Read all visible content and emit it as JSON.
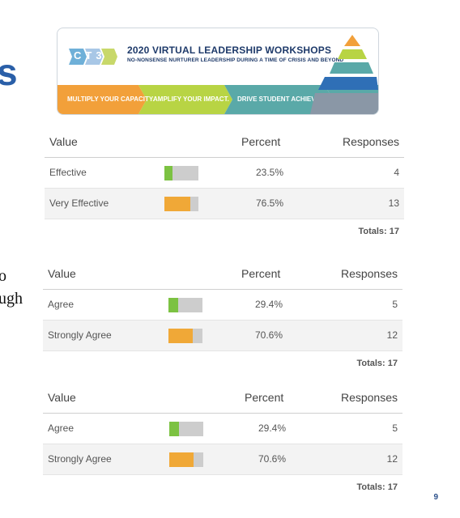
{
  "colors": {
    "agree_fill": "#7cc242",
    "strong_fill": "#f0a837",
    "bar_track": "#cdcdcd",
    "banner_orange": "#f2a03a",
    "banner_green": "#b8d444",
    "banner_teal": "#5aa9a8",
    "banner_navy": "#1e3a6a"
  },
  "page_edge": {
    "fragment_top": "s",
    "fragment_mid1": "o",
    "fragment_mid2": "ugh"
  },
  "banner": {
    "logo_text": "CT3",
    "title": "2020 VIRTUAL LEADERSHIP WORKSHOPS",
    "subtitle": "NO-NONSENSE NURTURER LEADERSHIP DURING A TIME OF CRISIS AND BEYOND",
    "strip": [
      "MULTIPLY YOUR CAPACITY.",
      "AMPLIFY YOUR IMPACT.",
      "DRIVE STUDENT ACHIEVEMENT."
    ]
  },
  "tables": [
    {
      "headers": {
        "value": "Value",
        "percent": "Percent",
        "responses": "Responses"
      },
      "rows": [
        {
          "label": "Effective",
          "percent": "23.5%",
          "fraction": 0.235,
          "responses": "4",
          "color": "#7cc242"
        },
        {
          "label": "Very Effective",
          "percent": "76.5%",
          "fraction": 0.765,
          "responses": "13",
          "color": "#f0a837"
        }
      ],
      "totals": "Totals: 17"
    },
    {
      "headers": {
        "value": "Value",
        "percent": "Percent",
        "responses": "Responses"
      },
      "rows": [
        {
          "label": "Agree",
          "percent": "29.4%",
          "fraction": 0.294,
          "responses": "5",
          "color": "#7cc242"
        },
        {
          "label": "Strongly Agree",
          "percent": "70.6%",
          "fraction": 0.706,
          "responses": "12",
          "color": "#f0a837"
        }
      ],
      "totals": "Totals: 17"
    },
    {
      "headers": {
        "value": "Value",
        "percent": "Percent",
        "responses": "Responses"
      },
      "rows": [
        {
          "label": "Agree",
          "percent": "29.4%",
          "fraction": 0.294,
          "responses": "5",
          "color": "#7cc242"
        },
        {
          "label": "Strongly Agree",
          "percent": "70.6%",
          "fraction": 0.706,
          "responses": "12",
          "color": "#f0a837"
        }
      ],
      "totals": "Totals: 17"
    }
  ],
  "page_number": "9"
}
